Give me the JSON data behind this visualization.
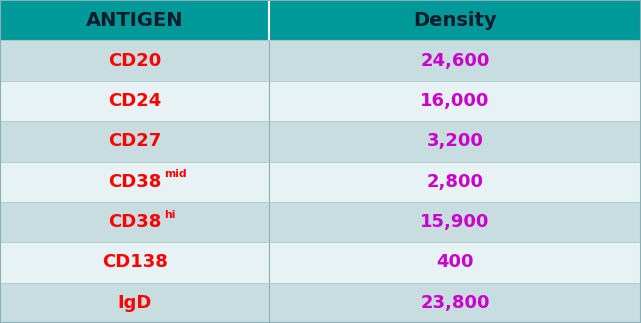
{
  "header": [
    "ANTIGEN",
    "Density"
  ],
  "rows": [
    [
      "CD20",
      "24,600"
    ],
    [
      "CD24",
      "16,000"
    ],
    [
      "CD27",
      "3,200"
    ],
    [
      "CD38mid",
      "2,800"
    ],
    [
      "CD38hi",
      "15,900"
    ],
    [
      "CD138",
      "400"
    ],
    [
      "IgD",
      "23,800"
    ]
  ],
  "superscripts": {
    "CD38mid": {
      "base": "CD38",
      "sup": "mid"
    },
    "CD38hi": {
      "base": "CD38",
      "sup": "hi"
    }
  },
  "header_bg": "#009999",
  "header_text_color": "#0d1b2a",
  "row_bg_odd": "#c8dde0",
  "row_bg_even": "#e6f2f3",
  "antigen_color": "#ff0000",
  "density_color": "#cc00cc",
  "header_fontsize": 14,
  "row_fontsize": 13,
  "col_split": 0.42,
  "fig_width": 6.41,
  "fig_height": 3.23,
  "border_color": "#b0c8cc",
  "header_divider_color": "#ffffff"
}
